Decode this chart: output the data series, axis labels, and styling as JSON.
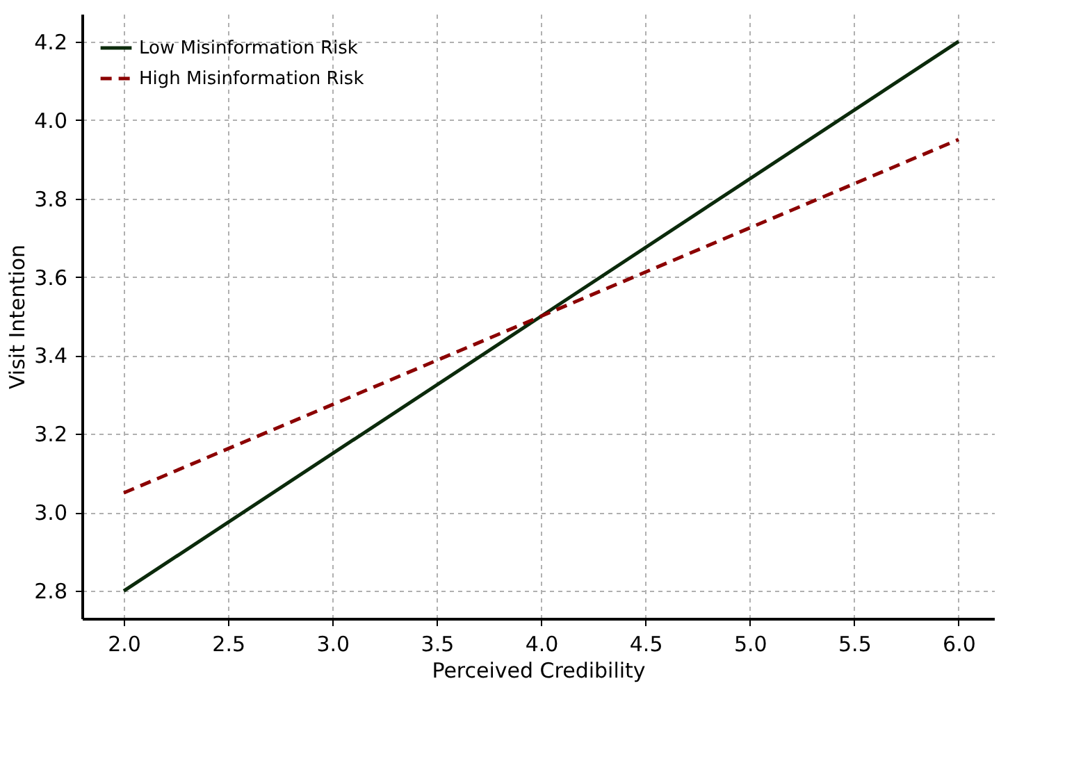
{
  "chart_data": {
    "type": "line",
    "xlabel": "Perceived Credibility",
    "ylabel": "Visit Intention",
    "x": [
      2,
      4,
      6
    ],
    "series": [
      {
        "name": "Low Misinformation Risk",
        "color": "#0b2a0b",
        "values": [
          2.8,
          3.5,
          4.2
        ],
        "line_style": "solid"
      },
      {
        "name": "High Misinformation Risk",
        "color": "#8b0000",
        "values": [
          3.05,
          3.5,
          3.95
        ],
        "line_style": "dashed"
      }
    ],
    "xlim": [
      1.8,
      6.17
    ],
    "ylim": [
      2.73,
      4.27
    ],
    "xticks": [
      {
        "value": 2,
        "label": "2.0"
      },
      2.5,
      {
        "value": 3,
        "label": "3.0"
      },
      3.5,
      {
        "value": 4,
        "label": "4.0"
      },
      4.5,
      {
        "value": 5,
        "label": "5.0"
      },
      5.5,
      {
        "value": 6,
        "label": "6.0"
      }
    ],
    "yticks": [
      2.8,
      {
        "value": 3,
        "label": "3.0"
      },
      3.2,
      3.4,
      3.6,
      3.8,
      {
        "value": 4,
        "label": "4.0"
      },
      4.2
    ],
    "grid": true,
    "legend": "top left",
    "marker": "none"
  }
}
